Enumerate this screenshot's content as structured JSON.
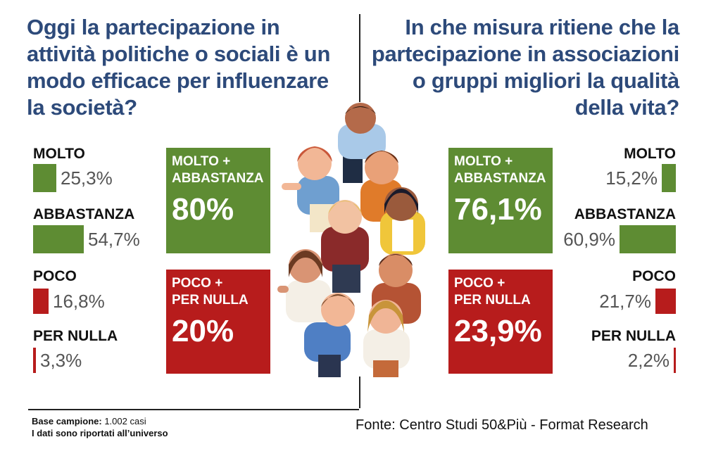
{
  "colors": {
    "title": "#2d4a7a",
    "green": "#5e8c33",
    "red": "#b71c1c",
    "text": "#111111",
    "muted": "#555555"
  },
  "chart_data": [
    {
      "type": "bar",
      "orientation": "horizontal",
      "title": "Oggi la partecipazione in attività politiche o sociali è un modo efficace per influenzare la società?",
      "categories": [
        "MOLTO",
        "ABBASTANZA",
        "POCO",
        "PER NULLA"
      ],
      "values": [
        25.3,
        54.7,
        16.8,
        3.3
      ],
      "value_labels": [
        "25,3%",
        "54,7%",
        "16,8%",
        "3,3%"
      ],
      "bar_colors": [
        "#5e8c33",
        "#5e8c33",
        "#b71c1c",
        "#b71c1c"
      ],
      "bar_direction": "left-to-right",
      "summary": [
        {
          "label": "MOLTO + ABBASTANZA",
          "value": 80,
          "value_label": "80%",
          "color": "#5e8c33"
        },
        {
          "label": "POCO + PER NULLA",
          "value": 20,
          "value_label": "20%",
          "color": "#b71c1c"
        }
      ]
    },
    {
      "type": "bar",
      "orientation": "horizontal",
      "title": "In che misura ritiene che la partecipazione in associazioni o gruppi migliori la qualità della vita?",
      "categories": [
        "MOLTO",
        "ABBASTANZA",
        "POCO",
        "PER NULLA"
      ],
      "values": [
        15.2,
        60.9,
        21.7,
        2.2
      ],
      "value_labels": [
        "15,2%",
        "60,9%",
        "21,7%",
        "2,2%"
      ],
      "bar_colors": [
        "#5e8c33",
        "#5e8c33",
        "#b71c1c",
        "#b71c1c"
      ],
      "bar_direction": "right-to-left",
      "summary": [
        {
          "label": "MOLTO + ABBASTANZA",
          "value": 76.1,
          "value_label": "76,1%",
          "color": "#5e8c33"
        },
        {
          "label": "POCO + PER NULLA",
          "value": 23.9,
          "value_label": "23,9%",
          "color": "#b71c1c"
        }
      ]
    }
  ],
  "questions": {
    "left_lines": [
      "Oggi la partecipazione in",
      "attività politiche o sociali è un",
      "modo efficace per influenzare",
      "la società?"
    ],
    "right_lines": [
      "In che misura ritiene che la",
      "partecipazione in associazioni",
      "o gruppi migliori la qualità",
      "della vita?"
    ]
  },
  "summary_boxes": {
    "left_top": {
      "line1": "MOLTO +",
      "line2": "ABBASTANZA",
      "value": "80%"
    },
    "left_bottom": {
      "line1": "POCO +",
      "line2": "PER NULLA",
      "value": "20%"
    },
    "right_top": {
      "line1": "MOLTO +",
      "line2": "ABBASTANZA",
      "value": "76,1%"
    },
    "right_bottom": {
      "line1": "POCO +",
      "line2": "PER NULLA",
      "value": "23,9%"
    }
  },
  "footer": {
    "sample_label": "Base campione:",
    "sample_value": "1.002 casi",
    "note": "I dati sono riportati all’universo",
    "source": "Fonte: Centro Studi 50&Più - Format Research"
  },
  "illustration": {
    "icon": "crowd-of-people-illustration"
  }
}
